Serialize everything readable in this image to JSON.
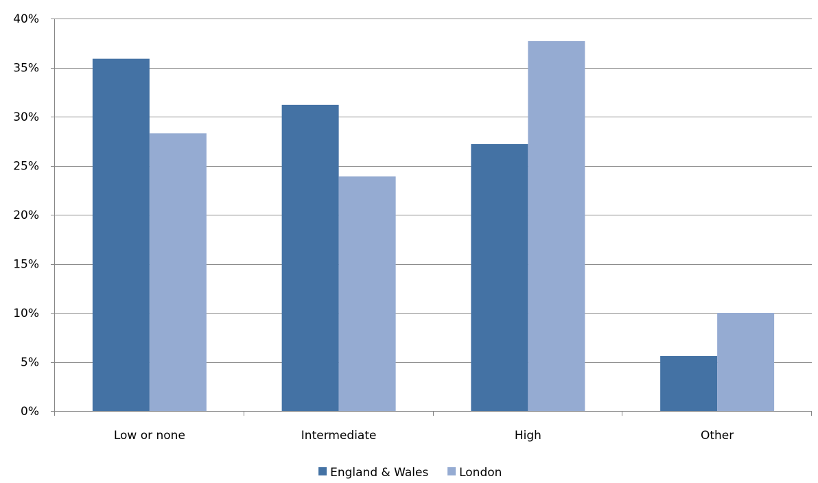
{
  "chart_data": {
    "type": "bar",
    "categories": [
      "Low or none",
      "Intermediate",
      "High",
      "Other"
    ],
    "series": [
      {
        "name": "England & Wales",
        "values": [
          35.9,
          31.2,
          27.2,
          5.6
        ],
        "color": "#4472a4"
      },
      {
        "name": "London",
        "values": [
          28.3,
          23.9,
          37.7,
          10.0
        ],
        "color": "#95abd2"
      }
    ],
    "ylim": [
      0,
      40
    ],
    "y_ticks": [
      0,
      5,
      10,
      15,
      20,
      25,
      30,
      35,
      40
    ],
    "y_tick_labels": [
      "0%",
      "5%",
      "10%",
      "15%",
      "20%",
      "25%",
      "30%",
      "35%",
      "40%"
    ],
    "grid": true,
    "legend_position": "bottom",
    "gridline_color": "#8c8c8c",
    "axis_color": "#868686"
  }
}
